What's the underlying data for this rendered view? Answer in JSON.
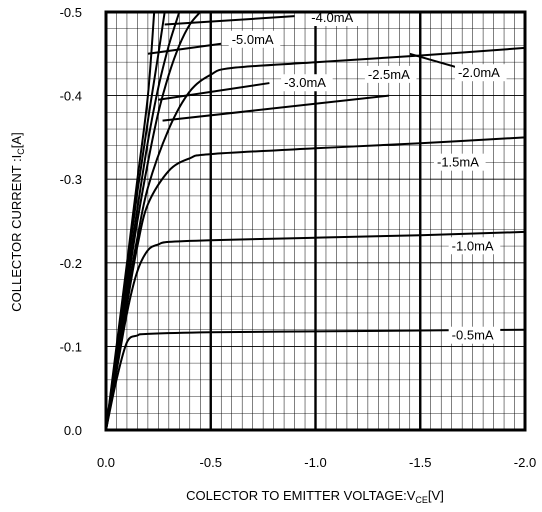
{
  "chart_data": {
    "type": "line",
    "title": "",
    "ylabel": "COLLECTOR CURRENT :I",
    "ylabel_sub": "C",
    "ylabel_unit": "[A]",
    "xlabel": "COLECTOR TO EMITTER VOLTAGE:V",
    "xlabel_sub": "CE",
    "xlabel_unit": "[V]",
    "xlim": [
      0.0,
      -2.0
    ],
    "ylim": [
      0.0,
      -0.5
    ],
    "x_ticks": [
      0.0,
      -0.5,
      -1.0,
      -1.5,
      -2.0
    ],
    "x_tick_labels": [
      "0.0",
      "-0.5",
      "-1.0",
      "-1.5",
      "-2.0"
    ],
    "y_ticks": [
      0.0,
      -0.1,
      -0.2,
      -0.3,
      -0.4,
      -0.5
    ],
    "y_tick_labels": [
      "0.0",
      "-0.1",
      "-0.2",
      "-0.3",
      "-0.4",
      "-0.5"
    ],
    "grid": true,
    "series": [
      {
        "name": "-0.5mA",
        "x": [
          0,
          -0.05,
          -0.1,
          -0.15,
          -0.2,
          -0.5,
          -1.0,
          -1.5,
          -2.0
        ],
        "y": [
          0,
          -0.06,
          -0.105,
          -0.113,
          -0.115,
          -0.117,
          -0.118,
          -0.119,
          -0.12
        ]
      },
      {
        "name": "-1.0mA",
        "x": [
          0,
          -0.05,
          -0.1,
          -0.15,
          -0.2,
          -0.25,
          -0.3,
          -0.5,
          -1.0,
          -1.5,
          -2.0
        ],
        "y": [
          0,
          -0.07,
          -0.14,
          -0.19,
          -0.215,
          -0.222,
          -0.225,
          -0.227,
          -0.23,
          -0.233,
          -0.237
        ]
      },
      {
        "name": "-1.5mA",
        "x": [
          0,
          -0.05,
          -0.1,
          -0.15,
          -0.2,
          -0.3,
          -0.4,
          -0.5,
          -1.0,
          -1.5,
          -2.0
        ],
        "y": [
          0,
          -0.075,
          -0.15,
          -0.22,
          -0.27,
          -0.31,
          -0.325,
          -0.33,
          -0.337,
          -0.343,
          -0.35
        ]
      },
      {
        "name": "-2.0mA",
        "x": [
          0,
          -0.05,
          -0.1,
          -0.15,
          -0.2,
          -0.3,
          -0.4,
          -0.5,
          -0.6,
          -1.0,
          -1.5,
          -2.0
        ],
        "y": [
          0,
          -0.08,
          -0.16,
          -0.23,
          -0.29,
          -0.36,
          -0.405,
          -0.425,
          -0.433,
          -0.44,
          -0.448,
          -0.457
        ]
      },
      {
        "name": "-2.5mA",
        "x": [
          0,
          -0.05,
          -0.1,
          -0.15,
          -0.2,
          -0.25,
          -0.3,
          -0.35,
          -0.4,
          -0.45
        ],
        "y": [
          0,
          -0.085,
          -0.17,
          -0.25,
          -0.32,
          -0.38,
          -0.425,
          -0.46,
          -0.485,
          -0.5
        ]
      },
      {
        "name": "-3.0mA",
        "x": [
          0,
          -0.05,
          -0.1,
          -0.15,
          -0.2,
          -0.25,
          -0.3,
          -0.35
        ],
        "y": [
          0,
          -0.09,
          -0.18,
          -0.265,
          -0.345,
          -0.41,
          -0.46,
          -0.5
        ]
      },
      {
        "name": "-4.0mA",
        "x": [
          0,
          -0.05,
          -0.1,
          -0.15,
          -0.2,
          -0.25,
          -0.28
        ],
        "y": [
          0,
          -0.095,
          -0.19,
          -0.285,
          -0.37,
          -0.45,
          -0.5
        ]
      },
      {
        "name": "-5.0mA",
        "x": [
          0,
          -0.05,
          -0.1,
          -0.15,
          -0.2,
          -0.23
        ],
        "y": [
          0,
          -0.1,
          -0.2,
          -0.3,
          -0.4,
          -0.5
        ]
      }
    ],
    "annotations": [
      {
        "text": "-4.0mA",
        "line_from": [
          -0.28,
          -0.485
        ],
        "line_to": [
          -0.9,
          -0.495
        ],
        "label_at": [
          -0.98,
          -0.488
        ]
      },
      {
        "text": "-5.0mA",
        "line_from": [
          -0.2,
          -0.45
        ],
        "line_to": [
          -0.55,
          -0.462
        ],
        "label_at": [
          -0.6,
          -0.462
        ]
      },
      {
        "text": "-3.0mA",
        "line_from": [
          -0.25,
          -0.395
        ],
        "line_to": [
          -0.78,
          -0.415
        ],
        "label_at": [
          -0.85,
          -0.41
        ]
      },
      {
        "text": "-2.5mA",
        "line_from": [
          -0.27,
          -0.37
        ],
        "line_to": [
          -1.35,
          -0.4
        ],
        "label_at": [
          -1.25,
          -0.42
        ]
      },
      {
        "text": "-2.0mA",
        "line_from": [
          -1.45,
          -0.45
        ],
        "line_to": [
          -1.7,
          -0.432
        ],
        "label_at": [
          -1.68,
          -0.422
        ]
      },
      {
        "text": "-1.5mA",
        "line_from": null,
        "line_to": null,
        "label_at": [
          -1.58,
          -0.315
        ]
      },
      {
        "text": "-1.0mA",
        "line_from": null,
        "line_to": null,
        "label_at": [
          -1.65,
          -0.215
        ]
      },
      {
        "text": "-0.5mA",
        "line_from": null,
        "line_to": null,
        "label_at": [
          -1.65,
          -0.108
        ]
      }
    ]
  }
}
